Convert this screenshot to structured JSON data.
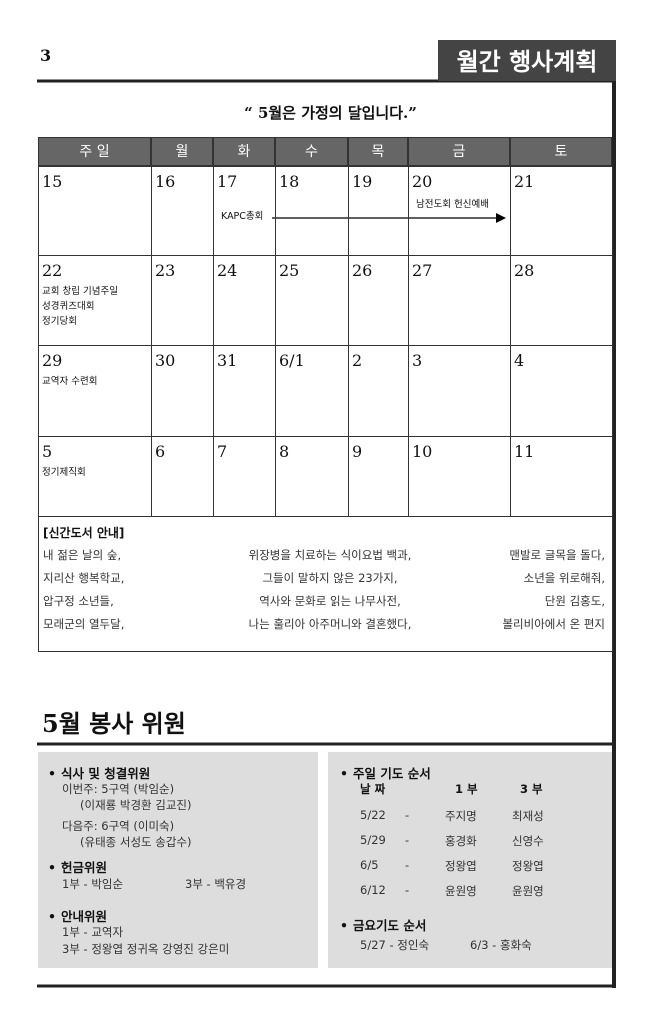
{
  "page_number": "3",
  "header_title": "월간 행사계획",
  "motto": "“ 5월은 가정의 달입니다.”",
  "calendar": {
    "weekdays": [
      "주 일",
      "월",
      "화",
      "수",
      "목",
      "금",
      "토"
    ],
    "weeks": [
      [
        {
          "day": "15"
        },
        {
          "day": "16"
        },
        {
          "day": "17",
          "events": [
            "KAPC총회"
          ]
        },
        {
          "day": "18"
        },
        {
          "day": "19"
        },
        {
          "day": "20",
          "events": [
            "남전도회 헌신예배"
          ]
        },
        {
          "day": "21"
        }
      ],
      [
        {
          "day": "22",
          "events": [
            "교회 창립 기념주일",
            "성경퀴즈대회",
            "정기당회"
          ]
        },
        {
          "day": "23"
        },
        {
          "day": "24"
        },
        {
          "day": "25"
        },
        {
          "day": "26"
        },
        {
          "day": "27"
        },
        {
          "day": "28"
        }
      ],
      [
        {
          "day": "29",
          "events": [
            "교역자 수련회"
          ]
        },
        {
          "day": "30"
        },
        {
          "day": "31"
        },
        {
          "day": "6/1"
        },
        {
          "day": "2"
        },
        {
          "day": "3"
        },
        {
          "day": "4"
        }
      ],
      [
        {
          "day": "5",
          "events": [
            "정기제직회"
          ]
        },
        {
          "day": "6"
        },
        {
          "day": "7"
        },
        {
          "day": "8"
        },
        {
          "day": "9"
        },
        {
          "day": "10"
        },
        {
          "day": "11"
        }
      ]
    ]
  },
  "books": {
    "title": "[신간도서 안내]",
    "rows": [
      [
        "내 젊은 날의 숲,",
        "위장병을 치료하는 식이요법 백과,",
        "맨발로 글목을 돌다,"
      ],
      [
        "지리산 행복학교,",
        "그들이 말하지 않은 23가지,",
        "소년을 위로해줘,"
      ],
      [
        "압구정 소년들,",
        "역사와 문화로 읽는 나무사전,",
        "단원 김홍도,"
      ],
      [
        "모래군의 열두달,",
        "나는 훌리아 아주머니와 결혼했다,",
        "볼리비아에서 온 편지"
      ]
    ]
  },
  "service": {
    "title": "5월 봉사 위원",
    "meal": {
      "heading": "식사 및 청결위원",
      "lines": [
        "이번주: 5구역 (박임순)",
        "(이재룡 박경환 김교진)",
        "다음주: 6구역 (이미숙)",
        "(유태종 서성도 송갑수)"
      ]
    },
    "offering": {
      "heading": "헌금위원",
      "lines": [
        "1부 - 박임순",
        "3부 - 백유경"
      ]
    },
    "guide": {
      "heading": "안내위원",
      "lines": [
        "1부 - 교역자",
        "3부 - 정왕엽 정귀옥 강영진 강은미"
      ]
    },
    "sunday_prayer": {
      "heading": "주일 기도 순서",
      "columns": [
        "날 짜",
        "1 부",
        "3 부"
      ],
      "rows": [
        [
          "5/22",
          "-",
          "주지명",
          "최재성"
        ],
        [
          "5/29",
          "-",
          "홍경화",
          "신영수"
        ],
        [
          "6/5",
          "-",
          "정왕엽",
          "정왕엽"
        ],
        [
          "6/12",
          "-",
          "윤원영",
          "윤원영"
        ]
      ]
    },
    "friday_prayer": {
      "heading": "금요기도 순서",
      "lines": [
        "5/27 - 정인숙",
        "6/3 - 홍화숙"
      ]
    }
  }
}
